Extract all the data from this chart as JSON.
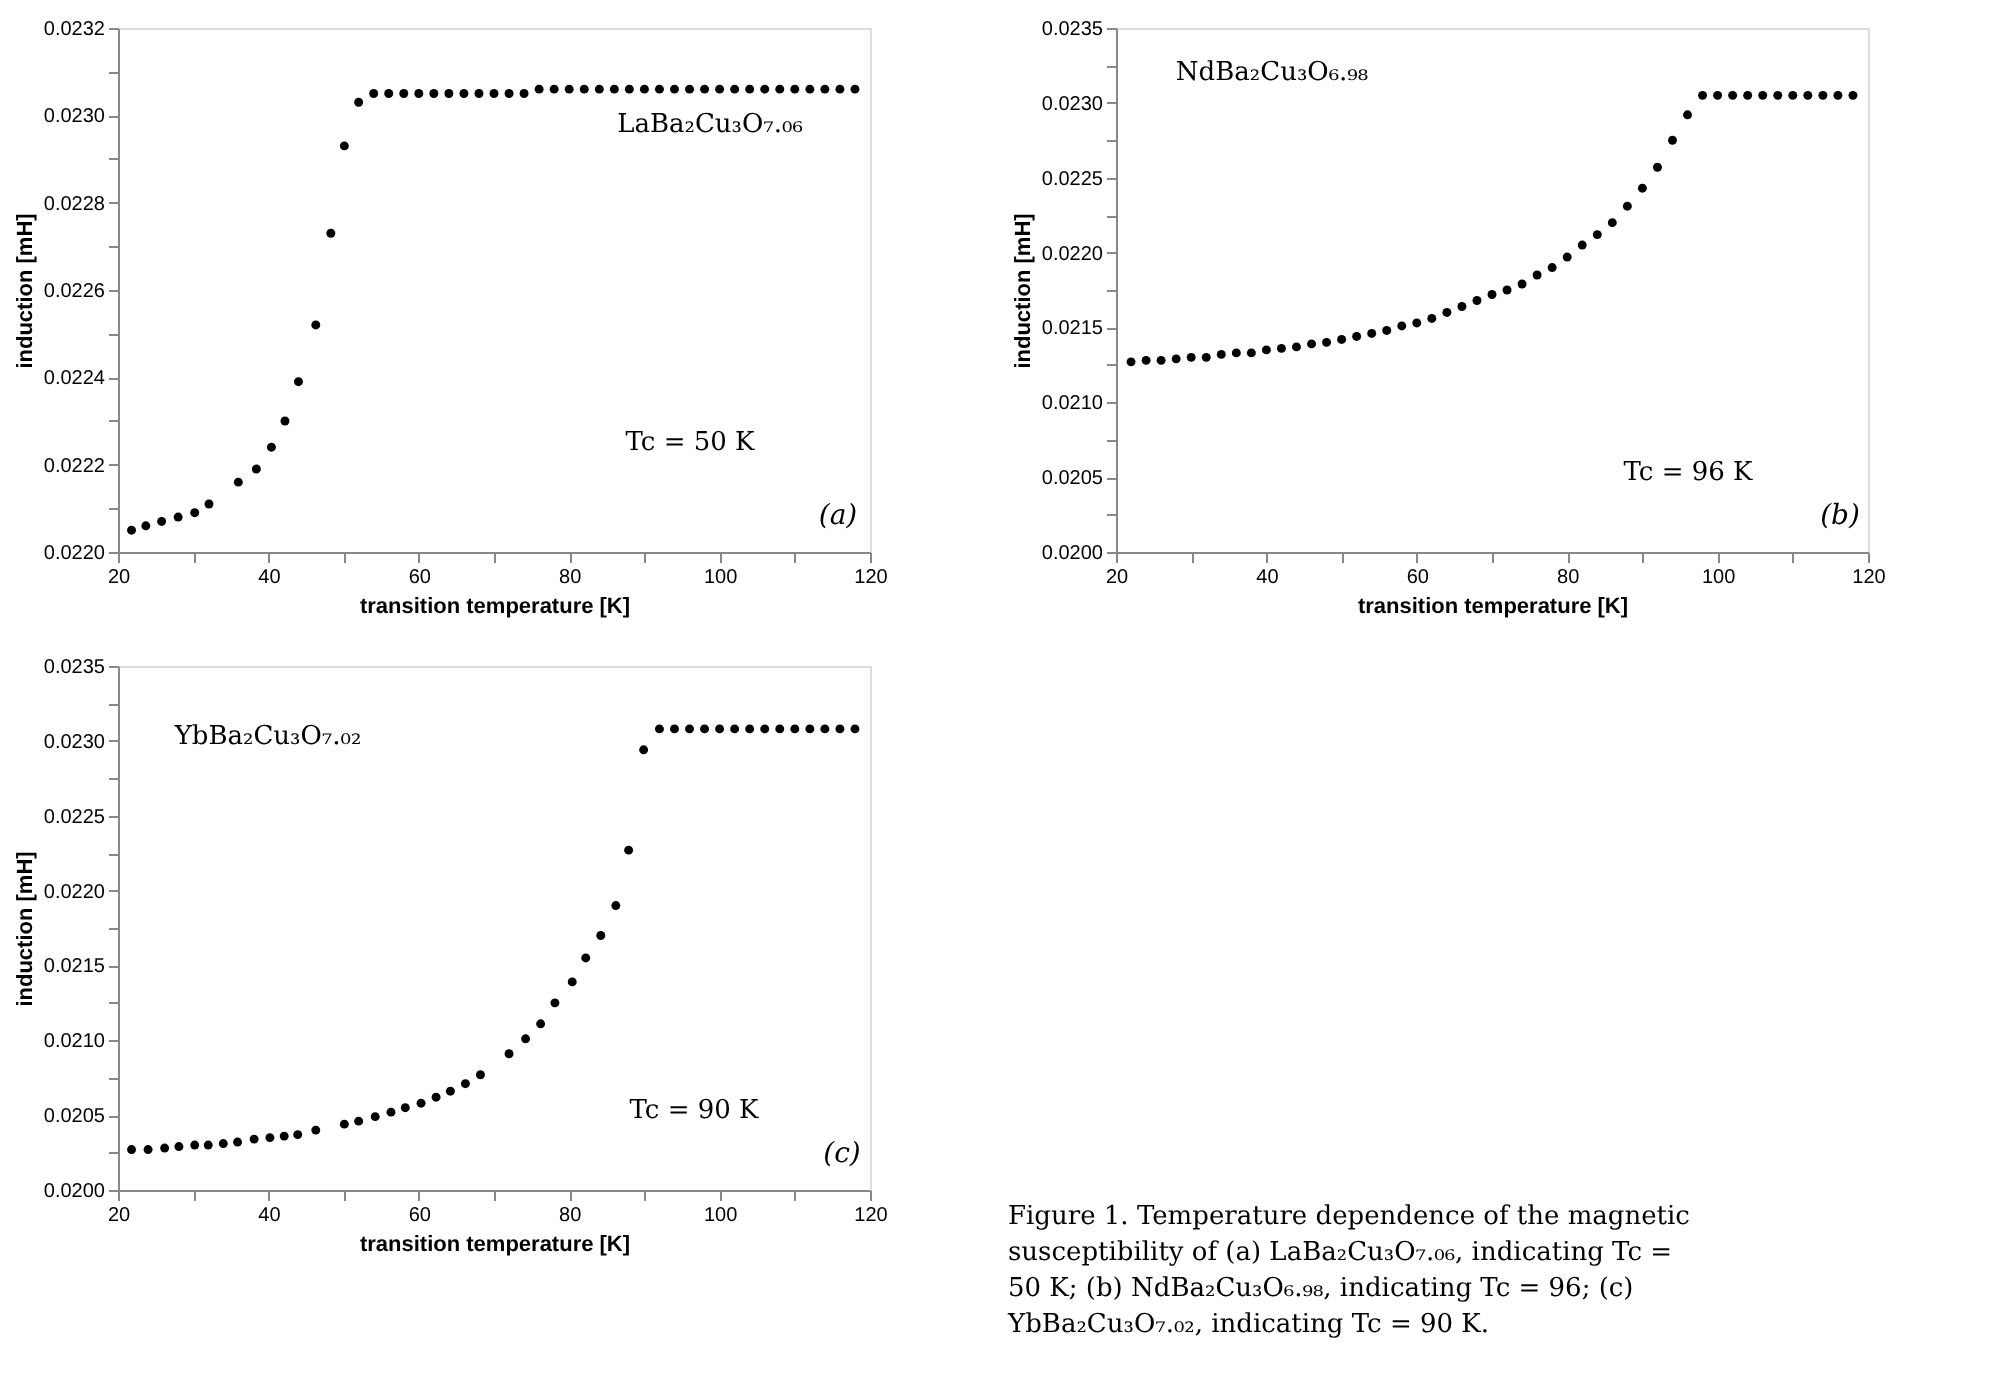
{
  "chart_data": [
    {
      "type": "scatter",
      "xlabel": "transition temperature [K]",
      "ylabel": "induction [mH]",
      "marker": "circle",
      "grid": false,
      "annotations": [
        "LaBa₂Cu₃O₇.₀₆",
        "Tc = 50 K",
        "(a)"
      ],
      "xlim": [
        20,
        120
      ],
      "ylim": [
        0.022,
        0.0232
      ],
      "xticks": [
        20,
        {
          "value": 30,
          "label": null
        },
        40,
        {
          "value": 50,
          "label": null
        },
        60,
        {
          "value": 70,
          "label": null
        },
        80,
        {
          "value": 90,
          "label": null
        },
        100,
        {
          "value": 110,
          "label": null
        },
        120
      ],
      "yticks": [
        {
          "value": 0.022,
          "label": "0.0220"
        },
        {
          "value": 0.0221,
          "label": null
        },
        0.0222,
        {
          "value": 0.0223,
          "label": null
        },
        0.0224,
        {
          "value": 0.0225,
          "label": null
        },
        0.0226,
        {
          "value": 0.0227,
          "label": null
        },
        0.0228,
        {
          "value": 0.0229,
          "label": null
        },
        {
          "value": 0.023,
          "label": "0.0230"
        },
        {
          "value": 0.0231,
          "label": null
        },
        0.0232
      ],
      "series": [
        {
          "color": "#000000",
          "x": [
            21.8,
            23.7,
            25.8,
            28,
            30.2,
            32.1,
            36,
            38.4,
            40.4,
            42.2,
            44,
            46.3,
            48.3,
            50.1,
            52,
            54,
            56,
            58,
            60,
            62,
            64,
            66,
            68,
            70,
            72,
            74,
            76,
            78,
            80,
            82,
            84,
            86,
            88,
            90,
            92,
            94,
            96,
            98,
            100,
            102,
            104,
            106,
            108,
            110,
            112,
            114,
            116,
            118
          ],
          "values": [
            0.02205,
            0.02206,
            0.02207,
            0.02208,
            0.02209,
            0.02211,
            0.02216,
            0.02219,
            0.02224,
            0.0223,
            0.02239,
            0.02252,
            0.02273,
            0.02293,
            0.02303,
            0.02305,
            0.02305,
            0.02305,
            0.02305,
            0.02305,
            0.02305,
            0.02305,
            0.02305,
            0.02305,
            0.02305,
            0.02305,
            0.02306,
            0.02306,
            0.02306,
            0.02306,
            0.02306,
            0.02306,
            0.02306,
            0.02306,
            0.02306,
            0.02306,
            0.02306,
            0.02306,
            0.02306,
            0.02306,
            0.02306,
            0.02306,
            0.02306,
            0.02306,
            0.02306,
            0.02306,
            0.02306,
            0.02306
          ]
        }
      ]
    },
    {
      "type": "scatter",
      "xlabel": "transition temperature [K]",
      "ylabel": "induction [mH]",
      "marker": "circle",
      "grid": false,
      "annotations": [
        "NdBa₂Cu₃O₆.₉₈",
        "Tc = 96 K",
        "(b)"
      ],
      "xlim": [
        20,
        120
      ],
      "ylim": [
        0.02,
        0.0235
      ],
      "xticks": [
        20,
        {
          "value": 30,
          "label": null
        },
        40,
        {
          "value": 50,
          "label": null
        },
        60,
        {
          "value": 70,
          "label": null
        },
        80,
        {
          "value": 90,
          "label": null
        },
        100,
        {
          "value": 110,
          "label": null
        },
        120
      ],
      "yticks": [
        {
          "value": 0.02,
          "label": "0.0200"
        },
        {
          "value": 0.02025,
          "label": null
        },
        {
          "value": 0.0205,
          "label": "0.0205"
        },
        {
          "value": 0.02075,
          "label": null
        },
        {
          "value": 0.021,
          "label": "0.0210"
        },
        {
          "value": 0.02125,
          "label": null
        },
        0.0215,
        {
          "value": 0.02175,
          "label": null
        },
        {
          "value": 0.022,
          "label": "0.0220"
        },
        {
          "value": 0.02225,
          "label": null
        },
        0.0225,
        {
          "value": 0.02275,
          "label": null
        },
        {
          "value": 0.023,
          "label": "0.0230"
        },
        {
          "value": 0.02325,
          "label": null
        },
        0.0235
      ],
      "series": [
        {
          "color": "#000000",
          "x": [
            22,
            24,
            26,
            28,
            30,
            32,
            34,
            36,
            38,
            40,
            42,
            44,
            46,
            48,
            50,
            52,
            54,
            56,
            58,
            60,
            62,
            64,
            66,
            68,
            70,
            72,
            74,
            76,
            78,
            80,
            82,
            84,
            86,
            88,
            90,
            92,
            94,
            96,
            98,
            100,
            102,
            104,
            106,
            108,
            110,
            112,
            114,
            116,
            118
          ],
          "values": [
            0.02127,
            0.02128,
            0.02128,
            0.02129,
            0.0213,
            0.0213,
            0.02132,
            0.02133,
            0.02133,
            0.02135,
            0.02136,
            0.02137,
            0.02139,
            0.0214,
            0.02142,
            0.02144,
            0.02146,
            0.02148,
            0.02151,
            0.02153,
            0.02156,
            0.0216,
            0.02164,
            0.02168,
            0.02172,
            0.02175,
            0.02179,
            0.02185,
            0.0219,
            0.02197,
            0.02205,
            0.02212,
            0.0222,
            0.02231,
            0.02243,
            0.02257,
            0.02275,
            0.02292,
            0.02305,
            0.02305,
            0.02305,
            0.02305,
            0.02305,
            0.02305,
            0.02305,
            0.02305,
            0.02305,
            0.02305,
            0.02305
          ]
        }
      ]
    },
    {
      "type": "scatter",
      "xlabel": "transition temperature [K]",
      "ylabel": "induction [mH]",
      "marker": "circle",
      "grid": false,
      "annotations": [
        "YbBa₂Cu₃O₇.₀₂",
        "Tc = 90 K",
        "(c)"
      ],
      "xlim": [
        20,
        120
      ],
      "ylim": [
        0.02,
        0.0235
      ],
      "xticks": [
        20,
        {
          "value": 30,
          "label": null
        },
        40,
        {
          "value": 50,
          "label": null
        },
        60,
        {
          "value": 70,
          "label": null
        },
        80,
        {
          "value": 90,
          "label": null
        },
        100,
        {
          "value": 110,
          "label": null
        },
        120
      ],
      "yticks": [
        {
          "value": 0.02,
          "label": "0.0200"
        },
        {
          "value": 0.02025,
          "label": null
        },
        {
          "value": 0.0205,
          "label": "0.0205"
        },
        {
          "value": 0.02075,
          "label": null
        },
        {
          "value": 0.021,
          "label": "0.0210"
        },
        {
          "value": 0.02125,
          "label": null
        },
        0.0215,
        {
          "value": 0.02175,
          "label": null
        },
        {
          "value": 0.022,
          "label": "0.0220"
        },
        {
          "value": 0.02225,
          "label": null
        },
        0.0225,
        {
          "value": 0.02275,
          "label": null
        },
        {
          "value": 0.023,
          "label": "0.0230"
        },
        {
          "value": 0.02325,
          "label": null
        },
        0.0235
      ],
      "series": [
        {
          "color": "#000000",
          "x": [
            21.8,
            24,
            26.2,
            28.1,
            30.2,
            32,
            34,
            35.9,
            38.1,
            40.2,
            42.1,
            43.9,
            46.3,
            50.1,
            52,
            54.2,
            56.3,
            58.2,
            60.3,
            62.3,
            64.2,
            66.2,
            68.2,
            72,
            74.2,
            76.2,
            78.1,
            80.4,
            82.2,
            84.2,
            86.2,
            87.9,
            89.9,
            92,
            94,
            96,
            98,
            100,
            102,
            104,
            106,
            108,
            110,
            112,
            114,
            116,
            118
          ],
          "values": [
            0.02027,
            0.02027,
            0.02028,
            0.02029,
            0.0203,
            0.0203,
            0.02031,
            0.02032,
            0.02034,
            0.02035,
            0.02036,
            0.02037,
            0.0204,
            0.02044,
            0.02046,
            0.02049,
            0.02052,
            0.02055,
            0.02058,
            0.02062,
            0.02066,
            0.02071,
            0.02077,
            0.02091,
            0.02101,
            0.02111,
            0.02125,
            0.02139,
            0.02155,
            0.0217,
            0.0219,
            0.02227,
            0.02294,
            0.02308,
            0.02308,
            0.02308,
            0.02308,
            0.02308,
            0.02308,
            0.02308,
            0.02308,
            0.02308,
            0.02308,
            0.02308,
            0.02308,
            0.02308,
            0.02308
          ]
        }
      ]
    },
    {
      "type": "other",
      "annotations": [
        "Figure 1. Temperature dependence of the magnetic susceptibility of (a) LaBa₂Cu₃O₇.₀₆, indicating Tc = 50 K; (b) NdBa₂Cu₃O₆.₉₈, indicating Tc = 96; (c) YbBa₂Cu₃O₇.₀₂, indicating Tc = 90 K."
      ]
    }
  ]
}
